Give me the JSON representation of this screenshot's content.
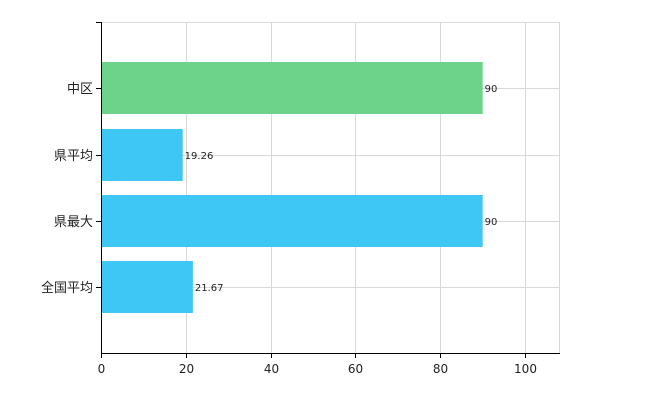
{
  "chart_data": {
    "type": "bar",
    "orientation": "horizontal",
    "categories": [
      "中区",
      "県平均",
      "県最大",
      "全国平均"
    ],
    "values": [
      90,
      19.26,
      90,
      21.67
    ],
    "data_labels": [
      "90",
      "19.26",
      "90",
      "21.67"
    ],
    "bar_colors": [
      "#6dd28a",
      "#3ec6f4",
      "#3ec6f4",
      "#3ec6f4"
    ],
    "x_ticks": [
      0,
      20,
      40,
      60,
      80,
      100
    ],
    "x_tick_labels": [
      "0",
      "20",
      "40",
      "60",
      "80",
      "100"
    ],
    "xlim": [
      0,
      108
    ],
    "grid": true,
    "title": "",
    "xlabel": "",
    "ylabel": ""
  }
}
